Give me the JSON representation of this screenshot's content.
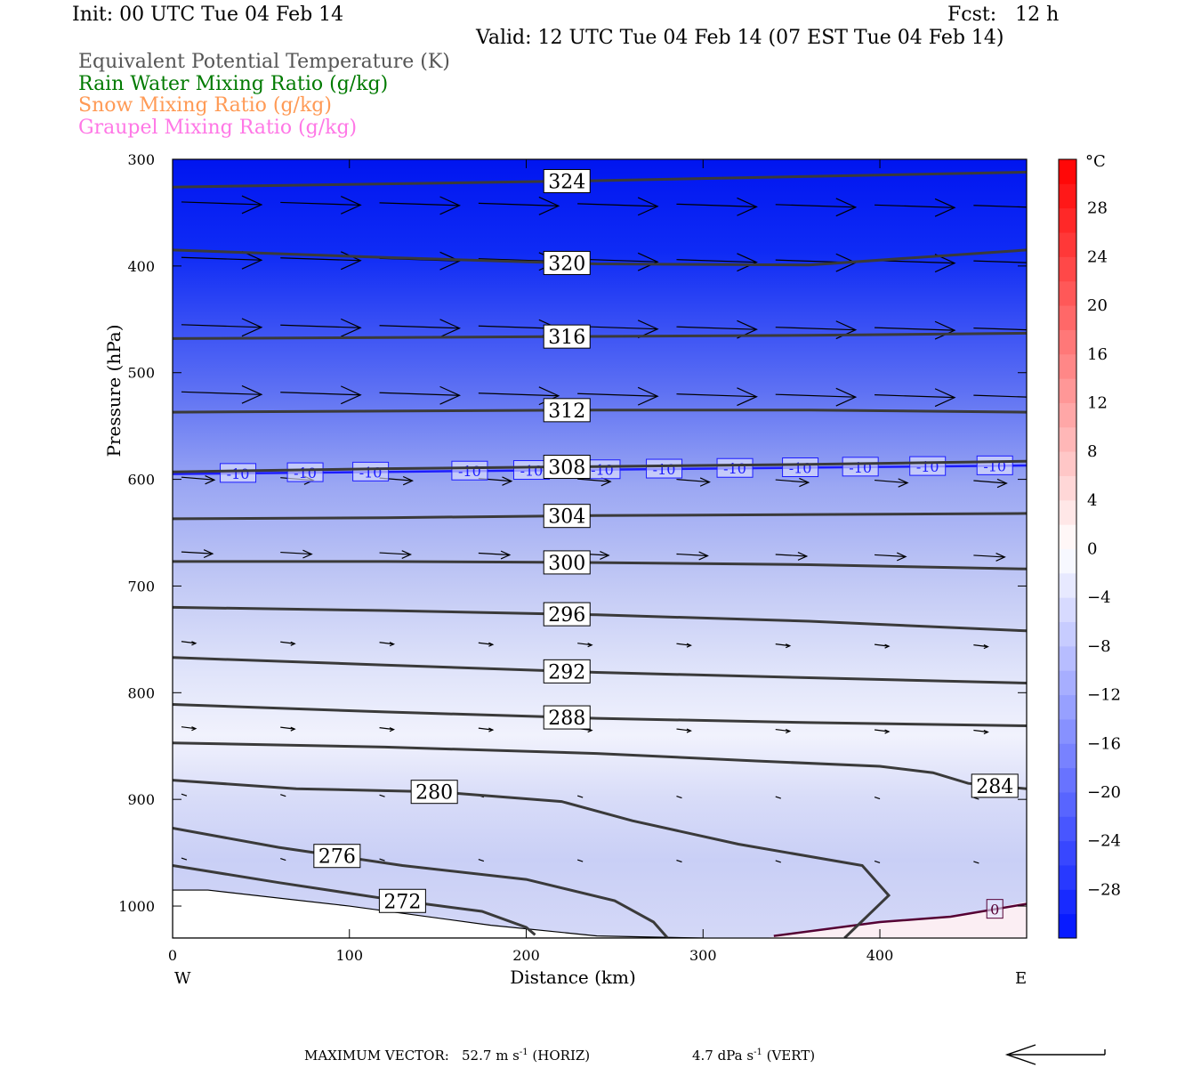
{
  "header": {
    "init": "Init: 00 UTC Tue 04 Feb 14",
    "fcst": "Fcst:   12 h",
    "valid": "Valid: 12 UTC Tue 04 Feb 14 (07 EST Tue 04 Feb 14)"
  },
  "fields": [
    {
      "label": "Equivalent Potential Temperature (K)",
      "color": "#555555"
    },
    {
      "label": "Rain Water Mixing Ratio (g/kg)",
      "color": "#007a00"
    },
    {
      "label": "Snow Mixing Ratio (g/kg)",
      "color": "#ff9a55"
    },
    {
      "label": "Graupel Mixing Ratio (g/kg)",
      "color": "#ff77e6"
    }
  ],
  "footer": {
    "max_vector_label": "MAXIMUM VECTOR:",
    "horiz_value": "52.7",
    "horiz_unit": "m s",
    "horiz_exp": "-1",
    "horiz_tag": "(HORIZ)",
    "vert_value": "4.7",
    "vert_unit": "dPa s",
    "vert_exp": "-1",
    "vert_tag": "(VERT)"
  },
  "chart_data": {
    "type": "cross-section contour",
    "xlabel": "Distance (km)",
    "ylabel": "Pressure (hPa)",
    "x_range": [
      0,
      483
    ],
    "y_range": [
      300,
      1030
    ],
    "x_ticks": [
      0,
      100,
      200,
      300,
      400
    ],
    "y_ticks": [
      300,
      400,
      500,
      600,
      700,
      800,
      900,
      1000
    ],
    "x_end_labels": {
      "left": "W",
      "right": "E"
    },
    "theta_e_contours": [
      {
        "value": 324,
        "label": "324",
        "label_x": 223,
        "points": [
          [
            0,
            326
          ],
          [
            120,
            323
          ],
          [
            240,
            320
          ],
          [
            360,
            316
          ],
          [
            483,
            312
          ]
        ]
      },
      {
        "value": 320,
        "label": "320",
        "label_x": 223,
        "points": [
          [
            0,
            385
          ],
          [
            120,
            392
          ],
          [
            240,
            398
          ],
          [
            360,
            399
          ],
          [
            483,
            385
          ]
        ]
      },
      {
        "value": 316,
        "label": "316",
        "label_x": 223,
        "points": [
          [
            0,
            468
          ],
          [
            120,
            467
          ],
          [
            240,
            466
          ],
          [
            360,
            465
          ],
          [
            483,
            463
          ]
        ]
      },
      {
        "value": 312,
        "label": "312",
        "label_x": 223,
        "points": [
          [
            0,
            537
          ],
          [
            120,
            536
          ],
          [
            240,
            535
          ],
          [
            360,
            535
          ],
          [
            483,
            537
          ]
        ]
      },
      {
        "value": 308,
        "label": "308",
        "label_x": 223,
        "points": [
          [
            0,
            593
          ],
          [
            120,
            590
          ],
          [
            240,
            588
          ],
          [
            360,
            586
          ],
          [
            483,
            583
          ]
        ]
      },
      {
        "value": 304,
        "label": "304",
        "label_x": 223,
        "points": [
          [
            0,
            637
          ],
          [
            120,
            636
          ],
          [
            240,
            634
          ],
          [
            360,
            633
          ],
          [
            483,
            632
          ]
        ]
      },
      {
        "value": 300,
        "label": "300",
        "label_x": 223,
        "points": [
          [
            0,
            677
          ],
          [
            120,
            677
          ],
          [
            240,
            678
          ],
          [
            360,
            680
          ],
          [
            483,
            684
          ]
        ]
      },
      {
        "value": 296,
        "label": "296",
        "label_x": 223,
        "points": [
          [
            0,
            720
          ],
          [
            120,
            723
          ],
          [
            240,
            727
          ],
          [
            360,
            733
          ],
          [
            483,
            742
          ]
        ]
      },
      {
        "value": 292,
        "label": "292",
        "label_x": 223,
        "points": [
          [
            0,
            767
          ],
          [
            120,
            774
          ],
          [
            240,
            781
          ],
          [
            360,
            786
          ],
          [
            483,
            791
          ]
        ]
      },
      {
        "value": 288,
        "label": "288",
        "label_x": 223,
        "points": [
          [
            0,
            811
          ],
          [
            120,
            818
          ],
          [
            240,
            824
          ],
          [
            360,
            828
          ],
          [
            483,
            831
          ]
        ]
      },
      {
        "value": 284,
        "label": "284",
        "label_x": 465,
        "points": [
          [
            0,
            847
          ],
          [
            120,
            851
          ],
          [
            240,
            857
          ],
          [
            330,
            864
          ],
          [
            400,
            869
          ],
          [
            430,
            875
          ],
          [
            450,
            885
          ],
          [
            483,
            890
          ]
        ]
      },
      {
        "value": 280,
        "label": "280",
        "label_x": 148,
        "points": [
          [
            0,
            882
          ],
          [
            70,
            890
          ],
          [
            150,
            893
          ],
          [
            220,
            902
          ],
          [
            260,
            920
          ],
          [
            320,
            942
          ],
          [
            390,
            962
          ],
          [
            405,
            990
          ],
          [
            380,
            1030
          ]
        ]
      },
      {
        "value": 276,
        "label": "276",
        "label_x": 93,
        "points": [
          [
            0,
            927
          ],
          [
            60,
            945
          ],
          [
            130,
            962
          ],
          [
            200,
            975
          ],
          [
            250,
            995
          ],
          [
            272,
            1015
          ],
          [
            280,
            1030
          ]
        ]
      },
      {
        "value": 272,
        "label": "272",
        "label_x": 130,
        "points": [
          [
            0,
            962
          ],
          [
            60,
            978
          ],
          [
            120,
            993
          ],
          [
            175,
            1005
          ],
          [
            200,
            1020
          ],
          [
            205,
            1027
          ]
        ]
      }
    ],
    "temperature_contours": [
      {
        "value": -10,
        "label": "-10",
        "color": "#1c1cff",
        "label_x": [
          37,
          75,
          112,
          168,
          203,
          243,
          278,
          318,
          355,
          389,
          427,
          465
        ],
        "points": [
          [
            0,
            595
          ],
          [
            120,
            593
          ],
          [
            240,
            591
          ],
          [
            360,
            589
          ],
          [
            483,
            587
          ]
        ]
      },
      {
        "value": 0,
        "label": "0",
        "color": "#550033",
        "label_x": [
          465
        ],
        "points": [
          [
            340,
            1028
          ],
          [
            400,
            1015
          ],
          [
            440,
            1010
          ],
          [
            483,
            998
          ]
        ]
      }
    ],
    "wind_vectors_levels_hPa": [
      340,
      392,
      455,
      518,
      598,
      668,
      752,
      832,
      895,
      955
    ],
    "colorbar": {
      "unit": "°C",
      "levels": [
        -32,
        -30,
        -28,
        -26,
        -24,
        -22,
        -20,
        -18,
        -16,
        -14,
        -12,
        -10,
        -8,
        -6,
        -4,
        -2,
        0,
        2,
        4,
        6,
        8,
        10,
        12,
        14,
        16,
        18,
        20,
        22,
        24,
        26,
        28,
        30,
        32
      ],
      "tick_labels": [
        "−28",
        "−24",
        "−20",
        "−16",
        "−12",
        "−8",
        "−4",
        "0",
        "4",
        "8",
        "12",
        "16",
        "20",
        "24",
        "28"
      ],
      "tick_values": [
        -28,
        -24,
        -20,
        -16,
        -12,
        -8,
        -4,
        0,
        4,
        8,
        12,
        16,
        20,
        24,
        28
      ]
    },
    "grid": false
  }
}
